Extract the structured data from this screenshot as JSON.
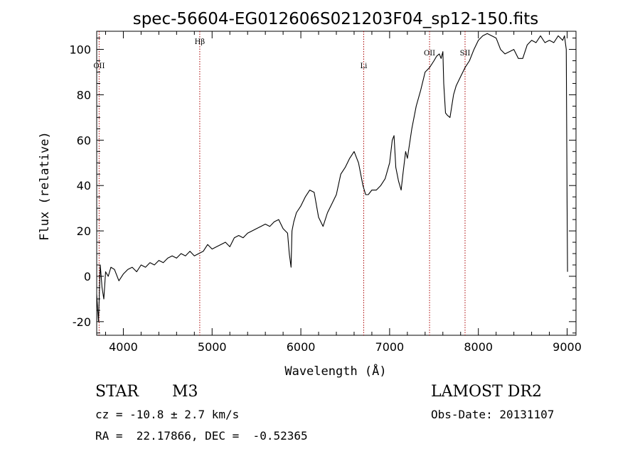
{
  "chart_data": {
    "type": "line",
    "title": "spec-56604-EG012606S021203F04_sp12-150.fits",
    "xlabel": "Wavelength (Å)",
    "ylabel": "Flux (relative)",
    "xlim": [
      3700,
      9100
    ],
    "ylim": [
      -26,
      108
    ],
    "xticks": [
      4000,
      5000,
      6000,
      7000,
      8000,
      9000
    ],
    "yticks": [
      -20,
      0,
      20,
      40,
      60,
      80,
      100
    ],
    "grid": false,
    "line_color": "#000000",
    "marker_color": "#aa0000",
    "spectral_lines": [
      {
        "label": "OII",
        "wavelength": 3727,
        "label_level": "low"
      },
      {
        "label": "Hβ",
        "wavelength": 4861,
        "label_level": "high"
      },
      {
        "label": "Li",
        "wavelength": 6708,
        "label_level": "low"
      },
      {
        "label": "OII",
        "wavelength": 7450,
        "label_level": "mid"
      },
      {
        "label": "SII",
        "wavelength": 7850,
        "label_level": "mid"
      }
    ],
    "series": [
      {
        "x": [
          3700,
          3720,
          3740,
          3760,
          3780,
          3800,
          3830,
          3860,
          3900,
          3950,
          4000,
          4050,
          4100,
          4150,
          4200,
          4250,
          4300,
          4350,
          4400,
          4450,
          4500,
          4550,
          4600,
          4650,
          4700,
          4750,
          4800,
          4850,
          4900,
          4950,
          5000,
          5050,
          5100,
          5150,
          5200,
          5250,
          5300,
          5350,
          5400,
          5450,
          5500,
          5550,
          5600,
          5650,
          5700,
          5750,
          5800,
          5850,
          5870,
          5890,
          5900,
          5920,
          5950,
          6000,
          6050,
          6100,
          6150,
          6200,
          6250,
          6300,
          6350,
          6400,
          6450,
          6500,
          6550,
          6600,
          6650,
          6700,
          6730,
          6760,
          6800,
          6850,
          6900,
          6950,
          7000,
          7030,
          7050,
          7070,
          7100,
          7130,
          7150,
          7180,
          7200,
          7250,
          7300,
          7350,
          7400,
          7450,
          7500,
          7530,
          7560,
          7580,
          7600,
          7610,
          7630,
          7650,
          7680,
          7700,
          7720,
          7750,
          7800,
          7850,
          7900,
          7950,
          8000,
          8050,
          8100,
          8150,
          8200,
          8250,
          8300,
          8350,
          8400,
          8450,
          8500,
          8550,
          8600,
          8650,
          8700,
          8750,
          8800,
          8850,
          8900,
          8950,
          8970,
          8990,
          9000,
          9005
        ],
        "y": [
          -8,
          -20,
          5,
          -5,
          -10,
          2,
          0,
          4,
          3,
          -2,
          1,
          3,
          4,
          2,
          5,
          4,
          6,
          5,
          7,
          6,
          8,
          9,
          8,
          10,
          9,
          11,
          9,
          10,
          11,
          14,
          12,
          13,
          14,
          15,
          13,
          17,
          18,
          17,
          19,
          20,
          21,
          22,
          23,
          22,
          24,
          25,
          21,
          19,
          10,
          4,
          20,
          24,
          28,
          31,
          35,
          38,
          37,
          26,
          22,
          28,
          32,
          36,
          45,
          48,
          52,
          55,
          50,
          40,
          36,
          36,
          38,
          38,
          40,
          43,
          50,
          60,
          62,
          48,
          42,
          38,
          45,
          55,
          52,
          65,
          75,
          82,
          90,
          92,
          95,
          97,
          98,
          96,
          99,
          85,
          72,
          71,
          70,
          75,
          80,
          84,
          88,
          92,
          95,
          100,
          104,
          106,
          107,
          106,
          105,
          100,
          98,
          99,
          100,
          96,
          96,
          102,
          104,
          103,
          106,
          103,
          104,
          103,
          106,
          104,
          106,
          100,
          30,
          2
        ]
      }
    ],
    "info": {
      "object_type": "STAR",
      "subclass": "M3",
      "survey": "LAMOST DR2",
      "cz": "cz = -10.8 ± 2.7 km/s",
      "obs_date": "Obs-Date: 20131107",
      "coords": "RA =  22.17866, DEC =  -0.52365"
    }
  }
}
